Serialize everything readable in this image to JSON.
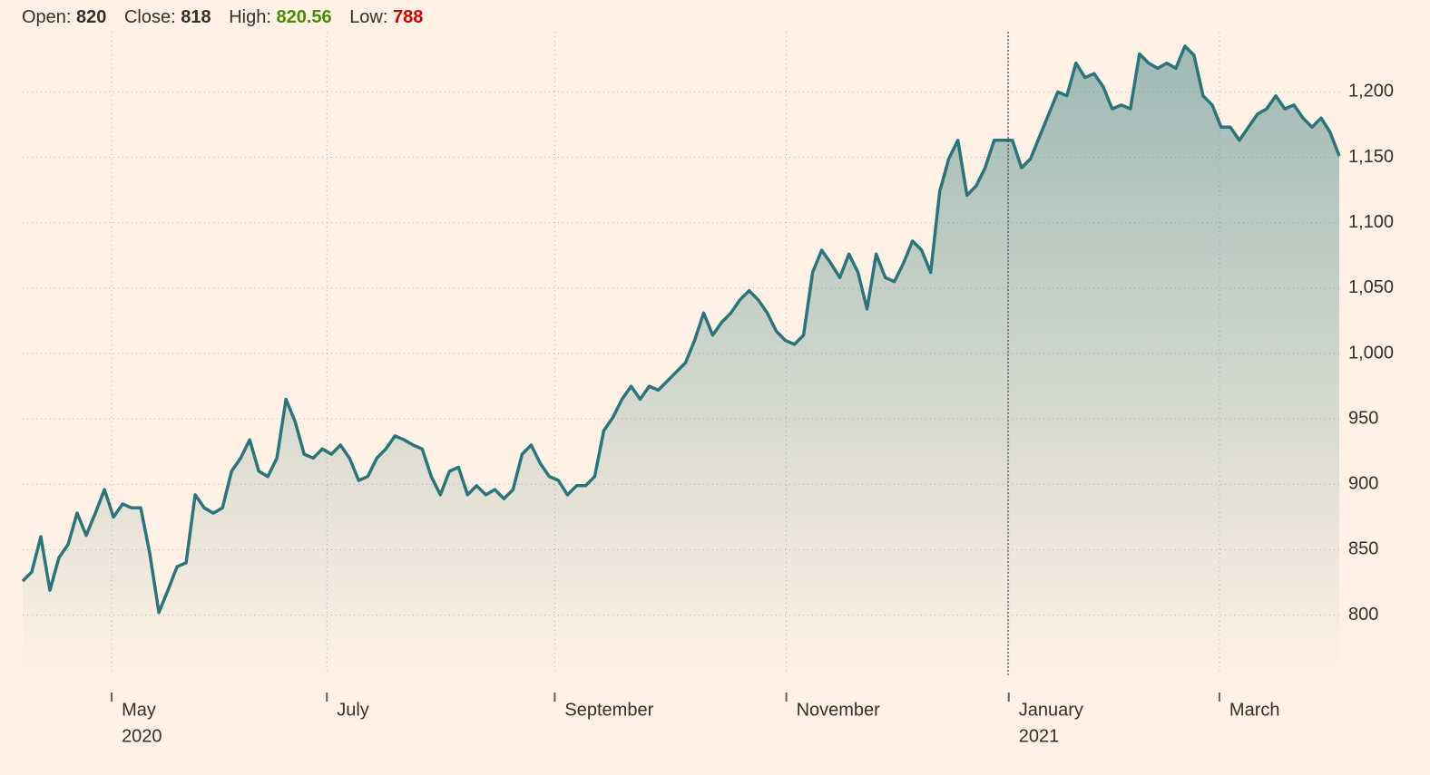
{
  "header": {
    "items": [
      {
        "label": "Open:",
        "value": "820"
      },
      {
        "label": "Close:",
        "value": "818"
      },
      {
        "label": "High:",
        "value": "820.56"
      },
      {
        "label": "Low:",
        "value": "788"
      }
    ]
  },
  "chart_data": {
    "type": "area",
    "series": [
      {
        "color": "#2a747a",
        "values": [
          826,
          833,
          860,
          819,
          844,
          854,
          878,
          861,
          878,
          896,
          875,
          885,
          882,
          882,
          847,
          802,
          819,
          837,
          840,
          892,
          882,
          878,
          882,
          910,
          920,
          934,
          910,
          906,
          920,
          965,
          948,
          923,
          920,
          927,
          923,
          930,
          920,
          903,
          906,
          920,
          927,
          937,
          934,
          930,
          927,
          906,
          892,
          910,
          913,
          892,
          899,
          892,
          896,
          889,
          896,
          923,
          930,
          916,
          906,
          903,
          892,
          899,
          899,
          906,
          941,
          951,
          965,
          975,
          965,
          975,
          972,
          979,
          986,
          993,
          1010,
          1031,
          1014,
          1024,
          1031,
          1041,
          1048,
          1041,
          1031,
          1017,
          1010,
          1007,
          1014,
          1062,
          1079,
          1069,
          1058,
          1076,
          1062,
          1034,
          1076,
          1058,
          1055,
          1069,
          1086,
          1079,
          1062,
          1124,
          1149,
          1163,
          1121,
          1128,
          1142,
          1163,
          1163,
          1163,
          1142,
          1149,
          1166,
          1183,
          1200,
          1197,
          1222,
          1211,
          1214,
          1204,
          1187,
          1190,
          1187,
          1229,
          1222,
          1218,
          1222,
          1218,
          1235,
          1228,
          1197,
          1190,
          1173,
          1173,
          1163,
          1173,
          1183,
          1187,
          1197,
          1187,
          1190,
          1180,
          1173,
          1180,
          1169,
          1151
        ]
      }
    ],
    "xlim": [
      0,
      145
    ],
    "xticks": [
      {
        "value": 9.8,
        "label": "May",
        "year": "2020"
      },
      {
        "value": 33.5,
        "label": "July"
      },
      {
        "value": 58.6,
        "label": "September"
      },
      {
        "value": 84.1,
        "label": "November"
      },
      {
        "value": 108.6,
        "label": "January",
        "year": "2021"
      },
      {
        "value": 131.8,
        "label": "March"
      }
    ],
    "ylim": [
      754,
      1246
    ],
    "yticks": [
      800,
      850,
      900,
      950,
      {
        "value": 1000,
        "label": "1,000"
      },
      {
        "value": 1050,
        "label": "1,050"
      },
      {
        "value": 1100,
        "label": "1,100"
      },
      {
        "value": 1150,
        "label": "1,150"
      },
      {
        "value": 1200,
        "label": "1,200"
      }
    ],
    "grid": true
  }
}
